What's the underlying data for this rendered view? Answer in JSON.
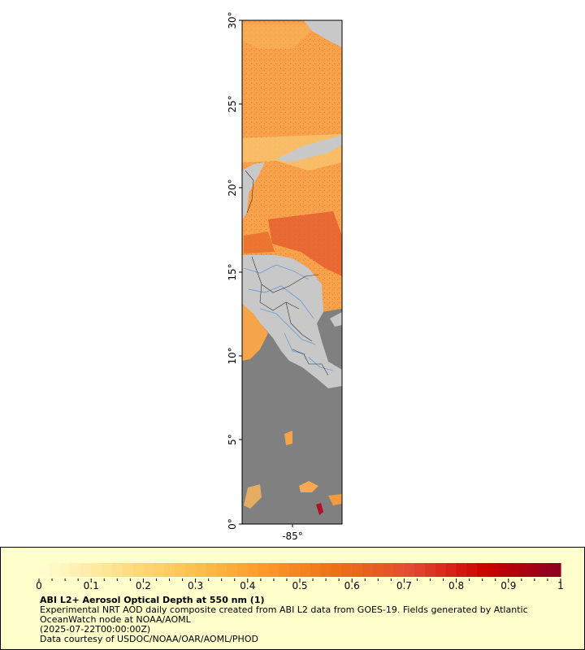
{
  "map": {
    "lat_ticks": [
      "0°",
      "5°",
      "10°",
      "15°",
      "20°",
      "25°",
      "30°"
    ],
    "lon_ticks": [
      "-85°"
    ],
    "colors": {
      "no_data": "#808080",
      "land": "#c8c8c8",
      "rivers": "#6f9fd8",
      "borders": "#000000"
    }
  },
  "legend": {
    "ticks": [
      "0",
      "0.1",
      "0.2",
      "0.3",
      "0.4",
      "0.5",
      "0.6",
      "0.7",
      "0.8",
      "0.9",
      "1"
    ],
    "colormap": [
      "#ffffd4",
      "#fee391",
      "#fec44f",
      "#fe9929",
      "#ec7014",
      "#e34a33",
      "#cc0000",
      "#8b0020"
    ],
    "title": "ABI L2+ Aerosol Optical Depth at 550 nm (1)",
    "lines": [
      "Experimental NRT AOD daily composite created from ABI L2 data from GOES-19. Fields generated by Atlantic",
      "OceanWatch node at NOAA/AOML",
      "(2025-07-22T00:00:00Z)",
      "Data courtesy of USDOC/NOAA/OAR/AOML/PHOD"
    ]
  }
}
